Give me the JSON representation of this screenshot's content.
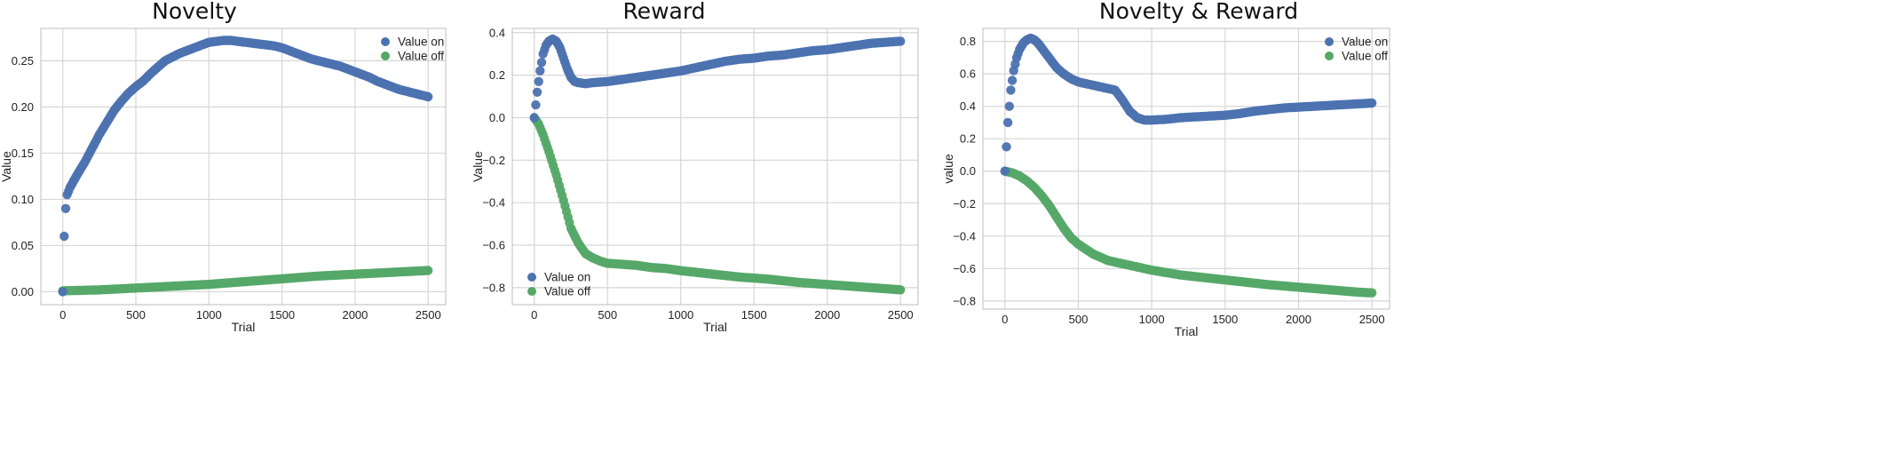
{
  "chart_data": [
    {
      "type": "scatter",
      "title": "Novelty",
      "xlabel": "Trial",
      "ylabel": "Value",
      "xlim": [
        -150,
        2620
      ],
      "ylim": [
        -0.014,
        0.285
      ],
      "xticks": [
        0,
        500,
        1000,
        1500,
        2000,
        2500
      ],
      "xtick_labels": [
        "0",
        "500",
        "1000",
        "1500",
        "2000",
        "2500"
      ],
      "yticks": [
        0.0,
        0.05,
        0.1,
        0.15,
        0.2,
        0.25
      ],
      "ytick_labels": [
        "0.00",
        "0.05",
        "0.10",
        "0.15",
        "0.20",
        "0.25"
      ],
      "grid": true,
      "legend_position": "top-right",
      "colors": {
        "on": "#4c72b0",
        "off": "#55a868"
      },
      "series": [
        {
          "name": "Value on",
          "x": [
            0,
            10,
            20,
            30,
            50,
            75,
            100,
            150,
            200,
            250,
            300,
            350,
            400,
            450,
            500,
            550,
            600,
            650,
            700,
            750,
            800,
            850,
            900,
            950,
            1000,
            1050,
            1100,
            1150,
            1200,
            1250,
            1300,
            1350,
            1400,
            1450,
            1500,
            1550,
            1600,
            1650,
            1700,
            1750,
            1800,
            1850,
            1900,
            1950,
            2000,
            2050,
            2100,
            2150,
            2200,
            2250,
            2300,
            2350,
            2400,
            2450,
            2500
          ],
          "y": [
            0.0,
            0.06,
            0.09,
            0.105,
            0.113,
            0.12,
            0.127,
            0.14,
            0.155,
            0.17,
            0.183,
            0.196,
            0.206,
            0.215,
            0.222,
            0.228,
            0.236,
            0.243,
            0.25,
            0.254,
            0.258,
            0.261,
            0.264,
            0.267,
            0.27,
            0.271,
            0.272,
            0.272,
            0.271,
            0.27,
            0.269,
            0.268,
            0.267,
            0.266,
            0.264,
            0.261,
            0.258,
            0.255,
            0.252,
            0.25,
            0.248,
            0.246,
            0.244,
            0.241,
            0.238,
            0.235,
            0.232,
            0.228,
            0.225,
            0.222,
            0.219,
            0.217,
            0.215,
            0.213,
            0.211
          ]
        },
        {
          "name": "Value off",
          "x": [
            0,
            250,
            500,
            750,
            1000,
            1250,
            1500,
            1750,
            2000,
            2250,
            2500
          ],
          "y": [
            0.001,
            0.002,
            0.004,
            0.006,
            0.008,
            0.011,
            0.014,
            0.017,
            0.019,
            0.021,
            0.023
          ]
        }
      ]
    },
    {
      "type": "scatter",
      "title": "Reward",
      "xlabel": "Trial",
      "ylabel": "Value",
      "xlim": [
        -150,
        2620
      ],
      "ylim": [
        -0.88,
        0.42
      ],
      "xticks": [
        0,
        500,
        1000,
        1500,
        2000,
        2500
      ],
      "xtick_labels": [
        "0",
        "500",
        "1000",
        "1500",
        "2000",
        "2500"
      ],
      "yticks": [
        -0.8,
        -0.6,
        -0.4,
        -0.2,
        0.0,
        0.2,
        0.4
      ],
      "ytick_labels": [
        "−0.8",
        "−0.6",
        "−0.4",
        "−0.2",
        "0.0",
        "0.2",
        "0.4"
      ],
      "grid": true,
      "legend_position": "bottom-left",
      "colors": {
        "on": "#4c72b0",
        "off": "#55a868"
      },
      "series": [
        {
          "name": "Value on",
          "x": [
            0,
            20,
            40,
            60,
            80,
            100,
            125,
            150,
            175,
            200,
            225,
            250,
            275,
            300,
            350,
            400,
            500,
            600,
            700,
            800,
            900,
            1000,
            1100,
            1200,
            1300,
            1400,
            1500,
            1600,
            1700,
            1800,
            1900,
            2000,
            2100,
            2200,
            2300,
            2400,
            2500
          ],
          "y": [
            0.0,
            0.12,
            0.22,
            0.3,
            0.34,
            0.36,
            0.37,
            0.36,
            0.33,
            0.28,
            0.23,
            0.19,
            0.17,
            0.165,
            0.16,
            0.165,
            0.17,
            0.18,
            0.19,
            0.2,
            0.21,
            0.22,
            0.235,
            0.25,
            0.265,
            0.275,
            0.28,
            0.29,
            0.295,
            0.305,
            0.315,
            0.32,
            0.33,
            0.34,
            0.35,
            0.355,
            0.36
          ]
        },
        {
          "name": "Value off",
          "x": [
            0,
            30,
            60,
            100,
            150,
            200,
            250,
            300,
            350,
            400,
            450,
            500,
            600,
            700,
            800,
            900,
            1000,
            1200,
            1400,
            1600,
            1800,
            2000,
            2200,
            2400,
            2500
          ],
          "y": [
            0.0,
            -0.03,
            -0.08,
            -0.16,
            -0.27,
            -0.39,
            -0.52,
            -0.59,
            -0.64,
            -0.66,
            -0.675,
            -0.685,
            -0.69,
            -0.695,
            -0.705,
            -0.71,
            -0.72,
            -0.735,
            -0.75,
            -0.76,
            -0.775,
            -0.785,
            -0.795,
            -0.805,
            -0.81
          ]
        }
      ]
    },
    {
      "type": "scatter",
      "title": "Novelty & Reward",
      "xlabel": "Trial",
      "ylabel": "value",
      "xlim": [
        -150,
        2620
      ],
      "ylim": [
        -0.85,
        0.88
      ],
      "xticks": [
        0,
        500,
        1000,
        1500,
        2000,
        2500
      ],
      "xtick_labels": [
        "0",
        "500",
        "1000",
        "1500",
        "2000",
        "2500"
      ],
      "yticks": [
        -0.8,
        -0.6,
        -0.4,
        -0.2,
        0.0,
        0.2,
        0.4,
        0.6,
        0.8
      ],
      "ytick_labels": [
        "−0.8",
        "−0.6",
        "−0.4",
        "−0.2",
        "0.0",
        "0.2",
        "0.4",
        "0.6",
        "0.8"
      ],
      "grid": true,
      "legend_position": "top-right",
      "colors": {
        "on": "#4c72b0",
        "off": "#55a868"
      },
      "series": [
        {
          "name": "Value on",
          "x": [
            0,
            20,
            40,
            60,
            80,
            100,
            125,
            150,
            175,
            200,
            225,
            250,
            300,
            350,
            400,
            450,
            500,
            600,
            700,
            750,
            800,
            850,
            900,
            950,
            1000,
            1100,
            1200,
            1300,
            1400,
            1500,
            1600,
            1700,
            1800,
            1900,
            2000,
            2100,
            2200,
            2300,
            2400,
            2500
          ],
          "y": [
            0.0,
            0.3,
            0.5,
            0.62,
            0.7,
            0.75,
            0.79,
            0.81,
            0.82,
            0.81,
            0.79,
            0.76,
            0.7,
            0.64,
            0.6,
            0.57,
            0.55,
            0.53,
            0.51,
            0.5,
            0.44,
            0.37,
            0.33,
            0.315,
            0.315,
            0.32,
            0.33,
            0.335,
            0.34,
            0.345,
            0.355,
            0.37,
            0.38,
            0.39,
            0.395,
            0.4,
            0.405,
            0.41,
            0.415,
            0.42
          ]
        },
        {
          "name": "Value off",
          "x": [
            0,
            50,
            100,
            150,
            200,
            250,
            300,
            350,
            400,
            450,
            500,
            600,
            700,
            800,
            900,
            1000,
            1200,
            1400,
            1600,
            1800,
            2000,
            2200,
            2400,
            2500
          ],
          "y": [
            0.0,
            -0.01,
            -0.03,
            -0.06,
            -0.1,
            -0.15,
            -0.21,
            -0.28,
            -0.35,
            -0.41,
            -0.45,
            -0.51,
            -0.55,
            -0.57,
            -0.59,
            -0.61,
            -0.64,
            -0.66,
            -0.68,
            -0.7,
            -0.715,
            -0.73,
            -0.745,
            -0.75
          ]
        }
      ]
    }
  ]
}
